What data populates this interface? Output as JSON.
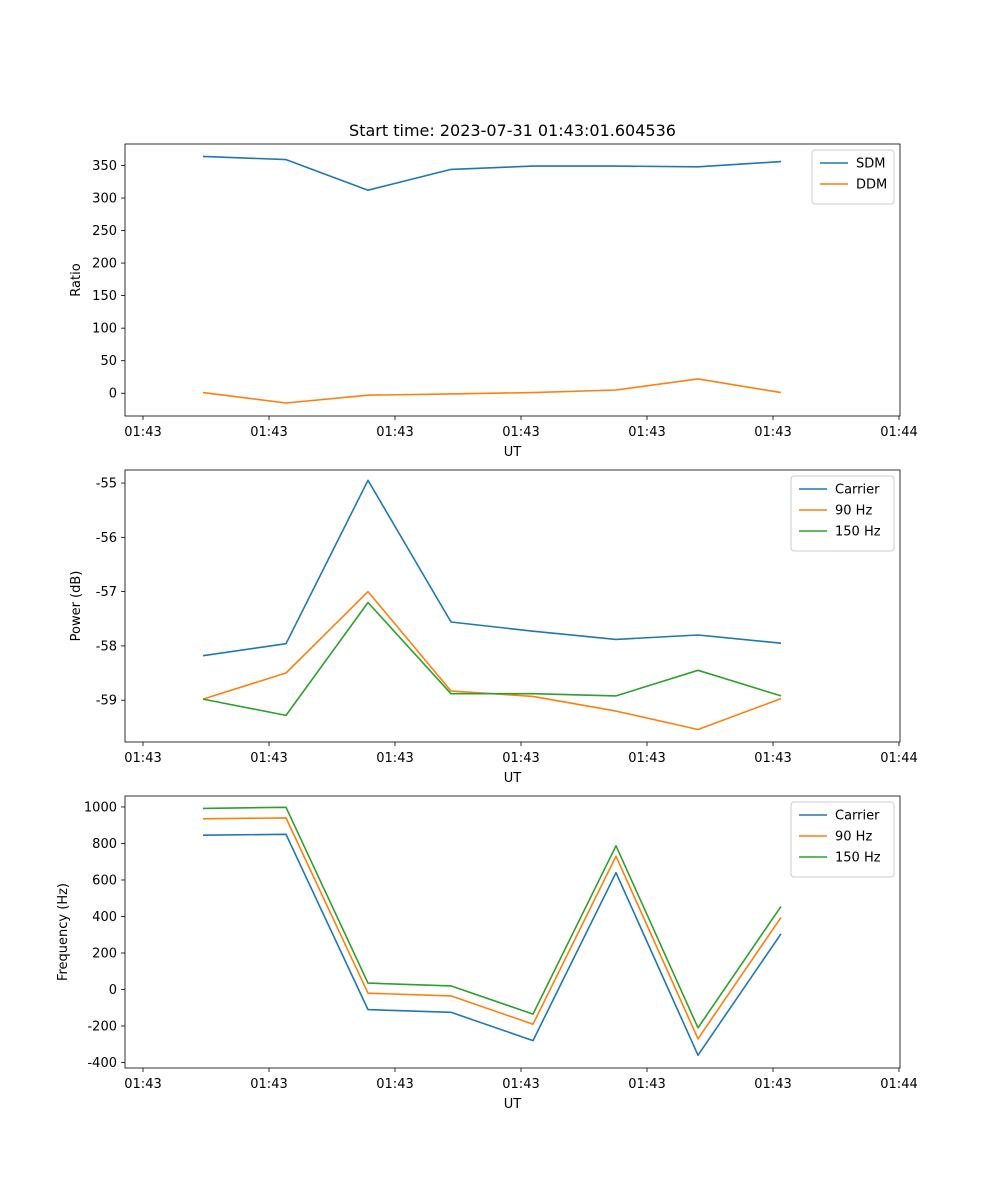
{
  "chart_data": [
    {
      "type": "line",
      "title": "Start time: 2023-07-31 01:43:01.604536",
      "xlabel": "UT",
      "ylabel": "Ratio",
      "x_ticks": [
        "01:43",
        "01:43",
        "01:43",
        "01:43",
        "01:43",
        "01:43",
        "01:44"
      ],
      "ylim": [
        -35,
        383
      ],
      "y_ticks": [
        0,
        50,
        100,
        150,
        200,
        250,
        300,
        350
      ],
      "legend_position": "top-right",
      "series": [
        {
          "name": "SDM",
          "color": "#1f77b4",
          "values": [
            364,
            359,
            312,
            344,
            349,
            349,
            348,
            356
          ]
        },
        {
          "name": "DDM",
          "color": "#ff7f0e",
          "values": [
            1,
            -15,
            -3,
            -1,
            1,
            5,
            22,
            1
          ]
        }
      ]
    },
    {
      "type": "line",
      "title": "",
      "xlabel": "UT",
      "ylabel": "Power (dB)",
      "x_ticks": [
        "01:43",
        "01:43",
        "01:43",
        "01:43",
        "01:43",
        "01:43",
        "01:44"
      ],
      "ylim": [
        -59.77,
        -54.76
      ],
      "y_ticks": [
        -59,
        -58,
        -57,
        -56,
        -55
      ],
      "legend_position": "top-right",
      "series": [
        {
          "name": "Carrier",
          "color": "#1f77b4",
          "values": [
            -58.18,
            -57.96,
            -54.95,
            -57.56,
            -57.73,
            -57.88,
            -57.8,
            -57.95
          ]
        },
        {
          "name": "90 Hz",
          "color": "#ff7f0e",
          "values": [
            -58.98,
            -58.5,
            -57.0,
            -58.83,
            -58.93,
            -59.2,
            -59.54,
            -58.97
          ]
        },
        {
          "name": "150 Hz",
          "color": "#2ca02c",
          "values": [
            -58.98,
            -59.28,
            -57.2,
            -58.88,
            -58.88,
            -58.92,
            -58.45,
            -58.92
          ]
        }
      ]
    },
    {
      "type": "line",
      "title": "",
      "xlabel": "UT",
      "ylabel": "Frequency (Hz)",
      "x_ticks": [
        "01:43",
        "01:43",
        "01:43",
        "01:43",
        "01:43",
        "01:43",
        "01:44"
      ],
      "ylim": [
        -430,
        1060
      ],
      "y_ticks": [
        -400,
        -200,
        0,
        200,
        400,
        600,
        800,
        1000
      ],
      "legend_position": "top-right",
      "series": [
        {
          "name": "Carrier",
          "color": "#1f77b4",
          "values": [
            845,
            850,
            -110,
            -125,
            -280,
            640,
            -360,
            305
          ]
        },
        {
          "name": "90 Hz",
          "color": "#ff7f0e",
          "values": [
            935,
            940,
            -20,
            -35,
            -190,
            730,
            -270,
            395
          ]
        },
        {
          "name": "150 Hz",
          "color": "#2ca02c",
          "values": [
            992,
            998,
            35,
            20,
            -135,
            787,
            -210,
            455
          ]
        }
      ]
    }
  ]
}
